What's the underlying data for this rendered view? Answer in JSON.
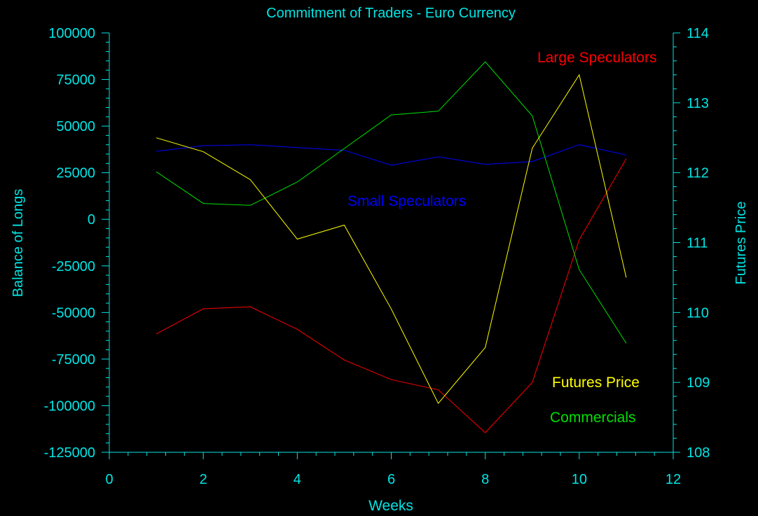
{
  "colors": {
    "axis": "#00e5e5",
    "background": "#000000",
    "large_speculators": "#ff0000",
    "small_speculators": "#0000ff",
    "commercials": "#00e000",
    "futures_price": "#ffff00"
  },
  "chart_data": {
    "type": "line",
    "title": "Commitment of Traders - Euro Currency",
    "xlabel": "Weeks",
    "ylabel_left": "Balance of Longs",
    "ylabel_right": "Futures Price",
    "xlim": [
      0,
      12
    ],
    "ylim_left": [
      -125000,
      100000
    ],
    "ylim_right": [
      108,
      114
    ],
    "x_ticks": [
      "0",
      "2",
      "4",
      "6",
      "8",
      "10",
      "12"
    ],
    "y_left_ticks": [
      "100000",
      "75000",
      "50000",
      "25000",
      "0",
      "-25000",
      "-50000",
      "-75000",
      "-100000",
      "-125000"
    ],
    "y_right_ticks": [
      "114",
      "113",
      "112",
      "111",
      "110",
      "109",
      "108"
    ],
    "x": [
      1,
      2,
      3,
      4,
      5,
      6,
      7,
      8,
      9,
      10,
      11
    ],
    "series": [
      {
        "name": "Large Speculators",
        "axis": "left",
        "color_key": "large_speculators",
        "values": [
          -61500,
          -48000,
          -47000,
          -59000,
          -75500,
          -86000,
          -91500,
          -114500,
          -87500,
          -11000,
          32500
        ]
      },
      {
        "name": "Small Speculators",
        "axis": "left",
        "color_key": "small_speculators",
        "values": [
          36500,
          39500,
          40000,
          38500,
          37000,
          29000,
          33500,
          29500,
          31000,
          40000,
          34500
        ]
      },
      {
        "name": "Commercials",
        "axis": "left",
        "color_key": "commercials",
        "values": [
          25500,
          8500,
          7500,
          20000,
          38000,
          56000,
          58000,
          84500,
          55500,
          -27000,
          -66500
        ]
      },
      {
        "name": "Futures Price",
        "axis": "right",
        "color_key": "futures_price",
        "values": [
          112.5,
          112.3,
          111.9,
          111.05,
          111.25,
          110.05,
          108.7,
          109.5,
          112.35,
          113.4,
          110.5
        ]
      }
    ],
    "annotations": [
      {
        "text": "Large Speculators",
        "color_key": "large_speculators"
      },
      {
        "text": "Small Speculators",
        "color_key": "small_speculators"
      },
      {
        "text": "Futures Price",
        "color_key": "futures_price"
      },
      {
        "text": "Commercials",
        "color_key": "commercials"
      }
    ],
    "grid": false,
    "legend": "none"
  }
}
